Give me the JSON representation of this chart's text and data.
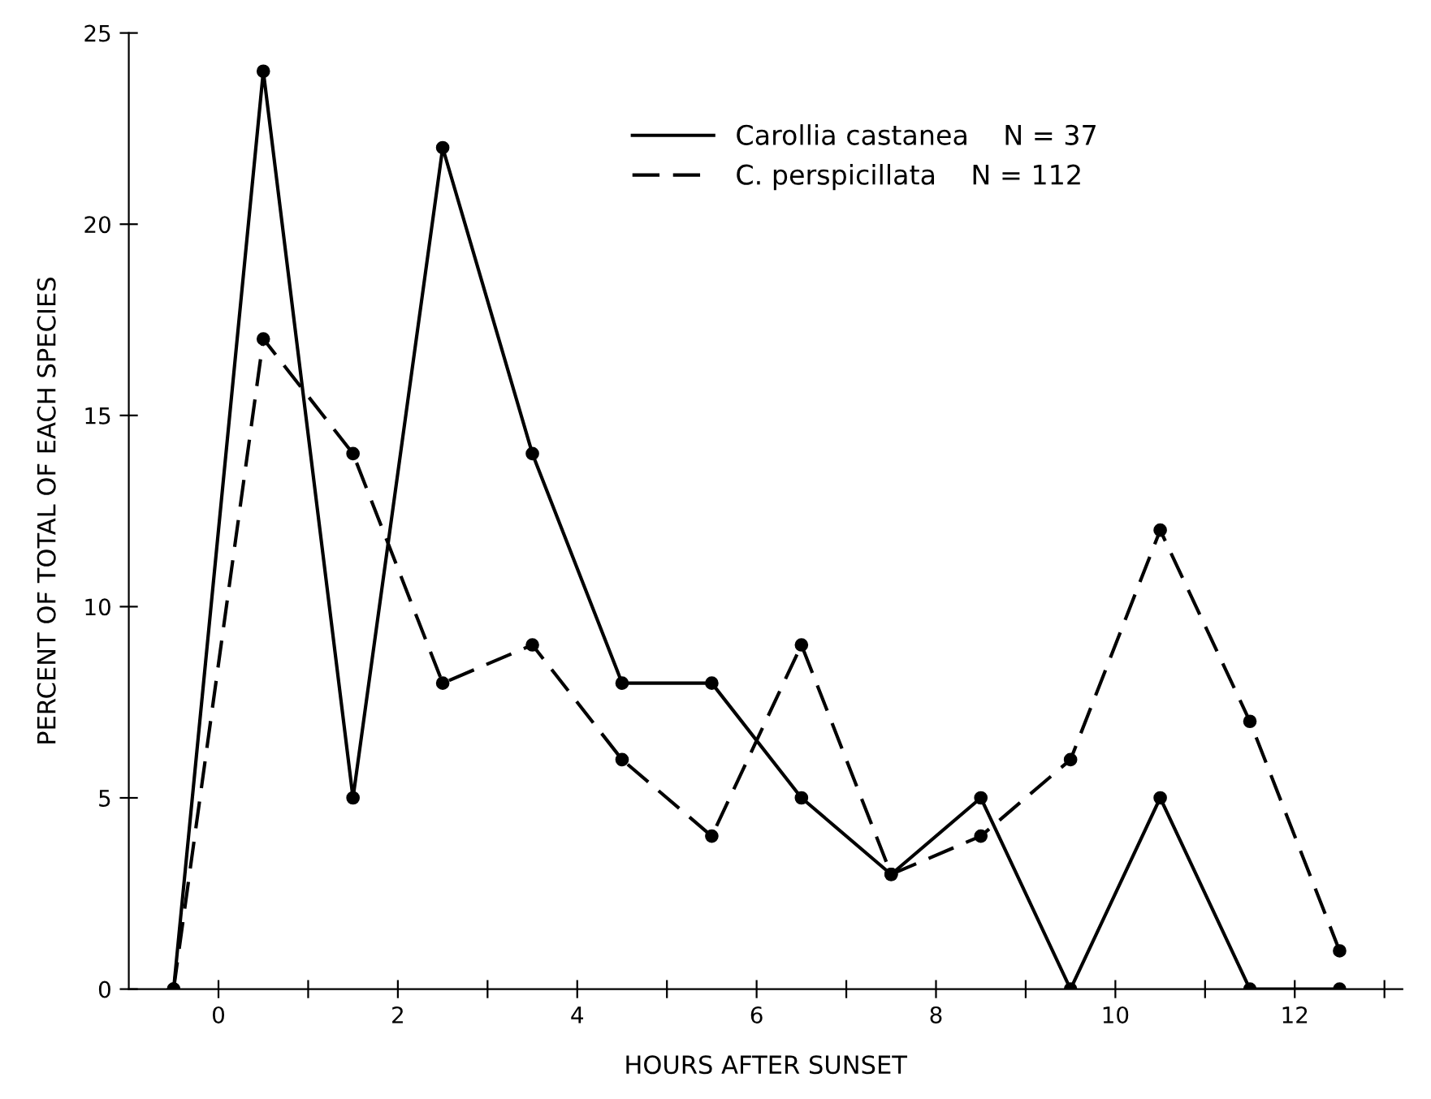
{
  "chart_data": {
    "type": "line",
    "xlabel": "HOURS AFTER SUNSET",
    "ylabel": "PERCENT OF TOTAL OF EACH SPECIES",
    "x": [
      -0.5,
      0.5,
      1.5,
      2.5,
      3.5,
      4.5,
      5.5,
      6.5,
      7.5,
      8.5,
      9.5,
      10.5,
      11.5,
      12.5
    ],
    "series": [
      {
        "name": "Carollia castanea    N = 37",
        "color": "#000000",
        "line_style": "solid",
        "values": [
          0,
          24,
          5,
          22,
          14,
          8,
          8,
          5,
          3,
          5,
          0,
          5,
          0,
          0
        ]
      },
      {
        "name": "C. perspicillata    N = 112",
        "color": "#000000",
        "line_style": "dashed",
        "values": [
          0,
          17,
          14,
          8,
          9,
          6,
          4,
          9,
          3,
          4,
          6,
          12,
          7,
          1
        ]
      }
    ],
    "xlim": [
      -1,
      13.2
    ],
    "ylim": [
      0,
      25
    ],
    "xticks": [
      0,
      {
        "value": 1,
        "label": null
      },
      2,
      {
        "value": 3,
        "label": null
      },
      4,
      {
        "value": 5,
        "label": null
      },
      6,
      {
        "value": 7,
        "label": null
      },
      8,
      {
        "value": 9,
        "label": null
      },
      10,
      {
        "value": 11,
        "label": null
      },
      12,
      {
        "value": 13,
        "label": null
      }
    ],
    "yticks": [
      0,
      5,
      10,
      15,
      20,
      25
    ],
    "marker": "circle",
    "grid": false,
    "legend": "top right"
  }
}
